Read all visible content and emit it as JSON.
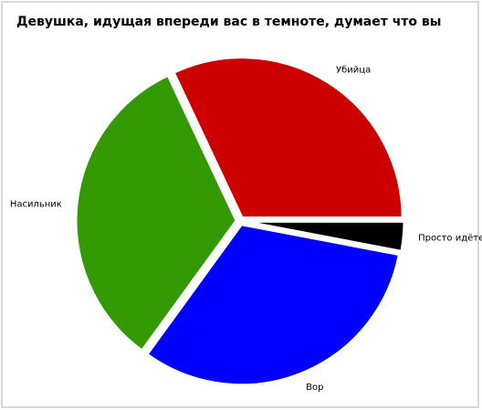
{
  "chart_data": {
    "type": "pie",
    "title": "Девушка, идущая впереди вас в темноте, думает что вы",
    "categories": [
      "Просто идёте",
      "Вор",
      "Насильник",
      "Убийца"
    ],
    "values": [
      3,
      32,
      33,
      32
    ],
    "colors": [
      "#000000",
      "#0000ff",
      "#339900",
      "#cc0000"
    ]
  }
}
